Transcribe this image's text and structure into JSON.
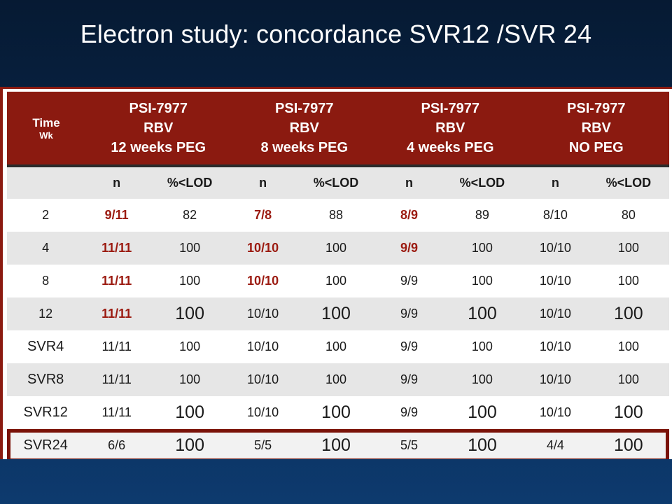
{
  "title": "Electron study: concordance SVR12 /SVR 24",
  "table": {
    "time_header": "Time",
    "time_sub": "Wk",
    "groups": [
      {
        "l1": "PSI-7977",
        "l2": "RBV",
        "l3": "12 weeks PEG"
      },
      {
        "l1": "PSI-7977",
        "l2": "RBV",
        "l3": "8 weeks PEG"
      },
      {
        "l1": "PSI-7977",
        "l2": "RBV",
        "l3": "4 weeks PEG"
      },
      {
        "l1": "PSI-7977",
        "l2": "RBV",
        "l3": "NO PEG"
      }
    ],
    "sub_n": "n",
    "sub_pct": "%<LOD",
    "rows": [
      {
        "t": "2",
        "v": [
          "9/11",
          "82",
          "7/8",
          "88",
          "8/9",
          "89",
          "8/10",
          "80"
        ]
      },
      {
        "t": "4",
        "v": [
          "11/11",
          "100",
          "10/10",
          "100",
          "9/9",
          "100",
          "10/10",
          "100"
        ]
      },
      {
        "t": "8",
        "v": [
          "11/11",
          "100",
          "10/10",
          "100",
          "9/9",
          "100",
          "10/10",
          "100"
        ]
      },
      {
        "t": "12",
        "v": [
          "11/11",
          "100",
          "10/10",
          "100",
          "9/9",
          "100",
          "10/10",
          "100"
        ]
      },
      {
        "t": "SVR4",
        "v": [
          "11/11",
          "100",
          "10/10",
          "100",
          "9/9",
          "100",
          "10/10",
          "100"
        ]
      },
      {
        "t": "SVR8",
        "v": [
          "11/11",
          "100",
          "10/10",
          "100",
          "9/9",
          "100",
          "10/10",
          "100"
        ]
      },
      {
        "t": "SVR12",
        "v": [
          "11/11",
          "100",
          "10/10",
          "100",
          "9/9",
          "100",
          "10/10",
          "100"
        ]
      },
      {
        "t": "SVR24",
        "v": [
          "6/6",
          "100",
          "5/5",
          "100",
          "5/5",
          "100",
          "4/4",
          "100"
        ]
      }
    ]
  },
  "colors": {
    "header_red": "#8b1a10",
    "highlight_red": "#9b1a10",
    "background_navy": "#0a2a52"
  }
}
